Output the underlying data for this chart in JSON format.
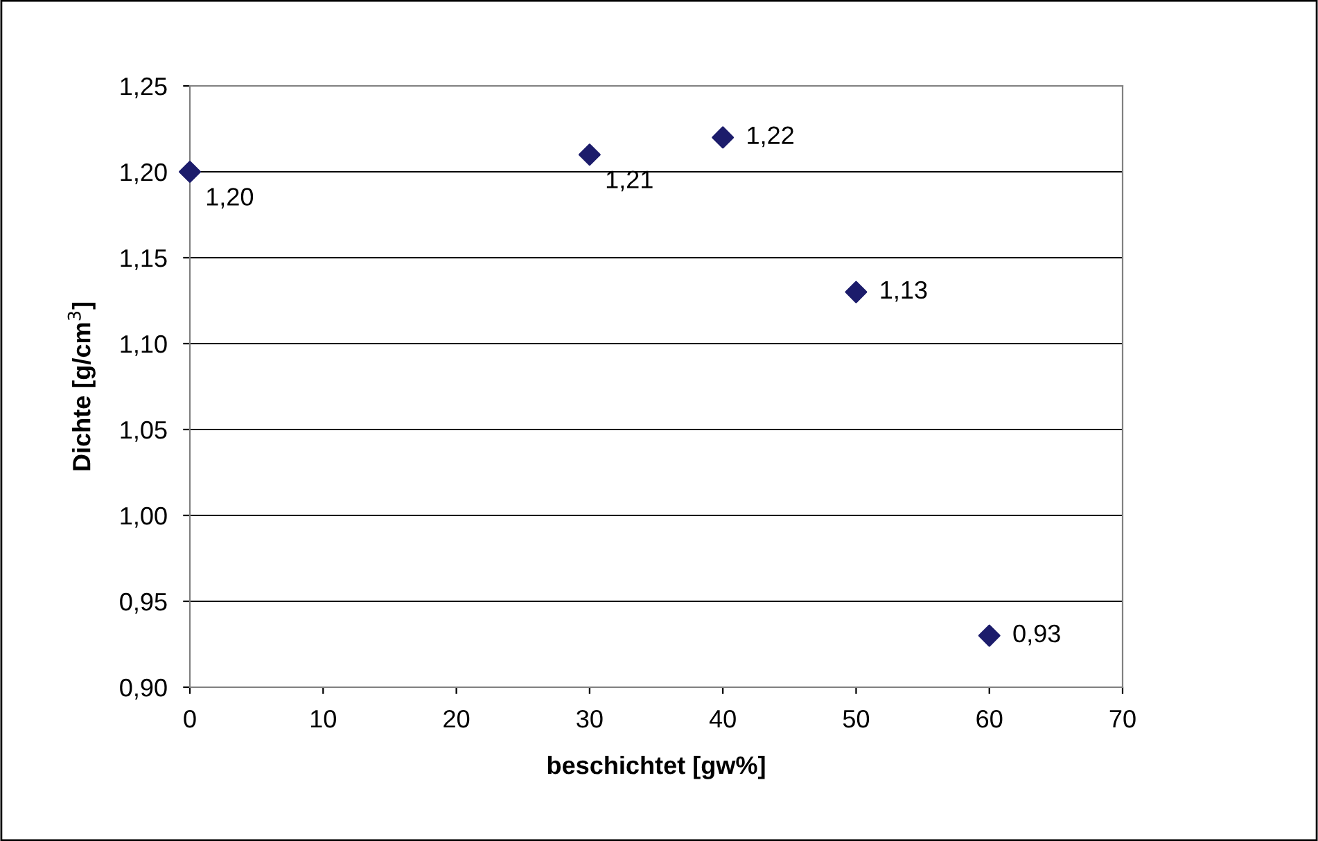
{
  "chart_data": {
    "type": "scatter",
    "xlabel": "beschichtet [gw%]",
    "ylabel": "Dichte [g/cm$^{3}$]",
    "x": [
      0,
      30,
      40,
      50,
      60
    ],
    "series": [
      {
        "color": "#1c1c6b",
        "values": [
          1.2,
          1.21,
          1.22,
          1.13,
          0.93
        ],
        "value_labels": [
          "1,20",
          "1,21",
          "1,22",
          "1,13",
          "0,93"
        ]
      }
    ],
    "xlim": [
      0,
      70
    ],
    "xticks": [
      0,
      10,
      20,
      30,
      40,
      50,
      60,
      70
    ],
    "ylim": [
      0.9,
      1.25
    ],
    "yticks": [
      {
        "value": 0.9,
        "label": "0,90"
      },
      {
        "value": 0.95,
        "label": "0,95"
      },
      {
        "value": 1.0,
        "label": "1,00"
      },
      {
        "value": 1.05,
        "label": "1,05"
      },
      {
        "value": 1.1,
        "label": "1,10"
      },
      {
        "value": 1.15,
        "label": "1,15"
      },
      {
        "value": 1.2,
        "label": "1,20"
      },
      {
        "value": 1.25,
        "label": "1,25"
      }
    ],
    "grid": "y",
    "marker": "diamond"
  }
}
